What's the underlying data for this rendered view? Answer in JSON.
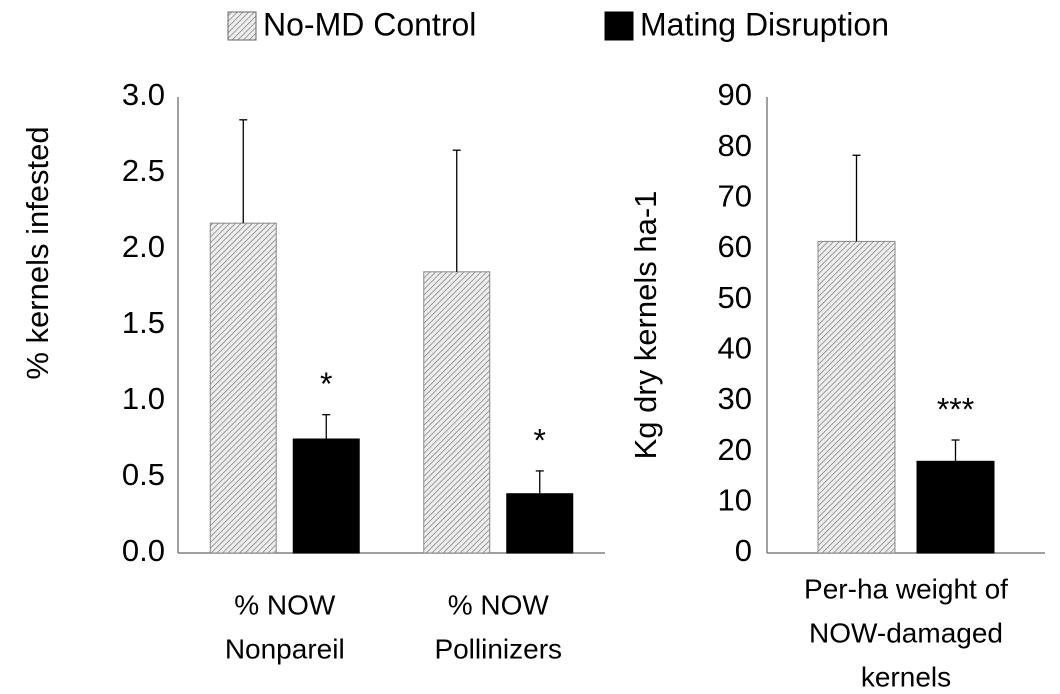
{
  "chart_data": [
    {
      "type": "bar",
      "ylabel": "% kernels infested",
      "categories": [
        [
          "% NOW",
          "Nonpareil"
        ],
        [
          "% NOW",
          "Pollinizers"
        ]
      ],
      "series": [
        {
          "name": "No-MD Control",
          "color": "#d9d9d9",
          "hatch": true,
          "values": [
            2.17,
            1.85
          ],
          "errors": [
            0.68,
            0.8
          ]
        },
        {
          "name": "Mating Disruption",
          "color": "#000000",
          "values": [
            0.75,
            0.39
          ],
          "errors": [
            0.16,
            0.15
          ],
          "significance": [
            "*",
            "*"
          ]
        }
      ],
      "ylim": [
        0,
        3
      ],
      "yticks": [
        {
          "value": 0,
          "label": "0.0"
        },
        0.5,
        {
          "value": 1,
          "label": "1.0"
        },
        1.5,
        {
          "value": 2,
          "label": "2.0"
        },
        2.5,
        {
          "value": 3,
          "label": "3.0"
        }
      ],
      "grid": false,
      "legend": "top"
    },
    {
      "type": "bar",
      "ylabel": "Kg dry kernels ha-1",
      "categories": [
        [
          "Per-ha weight of",
          "NOW-damaged",
          "kernels"
        ]
      ],
      "series": [
        {
          "name": "No-MD Control",
          "color": "#d9d9d9",
          "hatch": true,
          "values": [
            61.5
          ],
          "errors": [
            17
          ]
        },
        {
          "name": "Mating Disruption",
          "color": "#000000",
          "values": [
            18.1
          ],
          "errors": [
            4.2
          ],
          "significance": [
            "***"
          ]
        }
      ],
      "ylim": [
        0,
        90
      ],
      "yticks": [
        0,
        10,
        20,
        30,
        40,
        50,
        60,
        70,
        80,
        90
      ],
      "grid": false
    }
  ]
}
